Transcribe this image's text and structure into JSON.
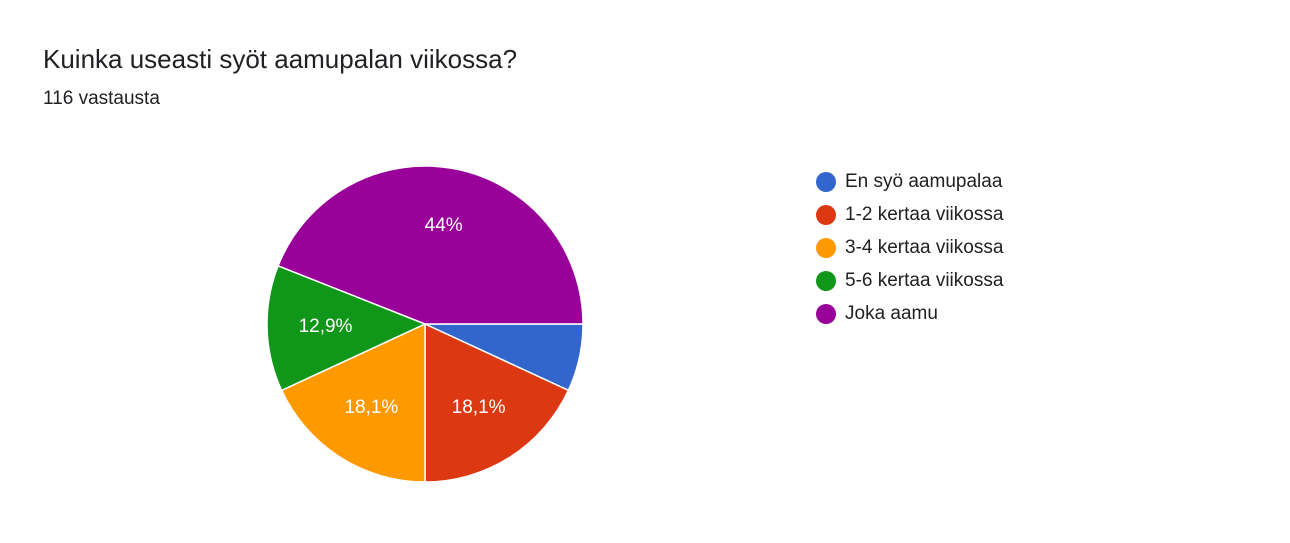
{
  "header": {
    "question": "Kuinka useasti syöt aamupalan viikossa?",
    "responses": "116 vastausta"
  },
  "chart_data": {
    "type": "pie",
    "categories": [
      "En syö aamupalaa",
      "1-2 kertaa viikossa",
      "3-4 kertaa viikossa",
      "5-6 kertaa viikossa",
      "Joka aamu"
    ],
    "values": [
      6.9,
      18.1,
      18.1,
      12.9,
      44
    ],
    "labels": [
      "",
      "18,1%",
      "18,1%",
      "12,9%",
      "44%"
    ],
    "colors": [
      "#3366cc",
      "#dc3912",
      "#ff9900",
      "#109618",
      "#990099"
    ],
    "legend": "right",
    "start": "3 o'clock",
    "direction": "clockwise"
  }
}
